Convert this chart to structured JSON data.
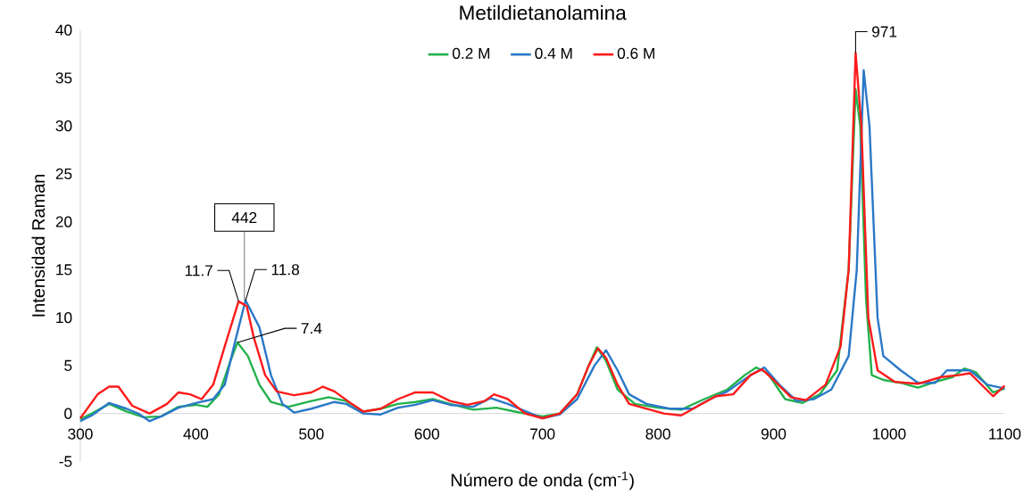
{
  "chart_data": {
    "type": "line",
    "title": "Metildietanolamina",
    "xlabel": "Número de onda (cm$^{-1}$)",
    "ylabel": "Intensidad Raman",
    "xlim": [
      300,
      1100
    ],
    "xticks": [
      300,
      400,
      500,
      600,
      700,
      800,
      900,
      1000,
      1100
    ],
    "ylim": [
      -5,
      40
    ],
    "yticks": [
      -5,
      0,
      5,
      10,
      15,
      20,
      25,
      30,
      35,
      40
    ],
    "grid": false,
    "legend": "top",
    "marker": "none",
    "line_style": "solid",
    "series": [
      {
        "name": "0.2 M",
        "color": "#22b24c",
        "x": [
          300,
          310,
          325,
          340,
          355,
          370,
          385,
          400,
          410,
          420,
          430,
          436,
          445,
          455,
          465,
          480,
          500,
          515,
          530,
          545,
          560,
          575,
          590,
          605,
          620,
          640,
          660,
          680,
          700,
          715,
          730,
          740,
          747,
          755,
          765,
          780,
          800,
          820,
          840,
          860,
          875,
          885,
          895,
          910,
          925,
          940,
          955,
          965,
          971,
          975,
          980,
          985,
          995,
          1010,
          1025,
          1040,
          1055,
          1065,
          1075,
          1090,
          1100
        ],
        "values": [
          -0.6,
          0,
          1.0,
          0.2,
          -0.4,
          -0.3,
          0.7,
          0.9,
          0.7,
          2,
          5.5,
          7.4,
          6,
          3,
          1.2,
          0.7,
          1.3,
          1.7,
          1.3,
          0.2,
          0.5,
          1.0,
          1.2,
          1.5,
          1.0,
          0.4,
          0.6,
          0.1,
          -0.3,
          0,
          2,
          5,
          6.9,
          5.5,
          2.5,
          1.0,
          0.6,
          0.4,
          1.5,
          2.5,
          4,
          4.8,
          4.2,
          1.5,
          1.1,
          2,
          4.5,
          15,
          33.8,
          30,
          12,
          4,
          3.5,
          3.2,
          2.7,
          3.3,
          3.8,
          4.7,
          4.3,
          2.2,
          2.6
        ]
      },
      {
        "name": "0.4 M",
        "color": "#2a78c8",
        "x": [
          300,
          310,
          325,
          340,
          350,
          360,
          370,
          385,
          400,
          415,
          425,
          435,
          443,
          455,
          465,
          475,
          485,
          500,
          520,
          530,
          545,
          560,
          575,
          590,
          605,
          620,
          640,
          655,
          670,
          690,
          700,
          715,
          730,
          745,
          755,
          765,
          775,
          790,
          810,
          830,
          845,
          860,
          880,
          892,
          905,
          920,
          935,
          950,
          965,
          972,
          978,
          983,
          990,
          995,
          1010,
          1025,
          1040,
          1050,
          1060,
          1070,
          1085,
          1100
        ],
        "values": [
          -0.8,
          -0.2,
          1.1,
          0.5,
          0,
          -0.8,
          -0.3,
          0.6,
          1.1,
          1.5,
          3,
          8,
          11.8,
          9,
          4,
          1,
          0.1,
          0.5,
          1.2,
          1.0,
          0,
          -0.1,
          0.6,
          0.9,
          1.4,
          0.9,
          0.7,
          1.6,
          1.0,
          0,
          -0.5,
          -0.1,
          1.5,
          5,
          6.6,
          4.5,
          2,
          1,
          0.5,
          0.5,
          1.5,
          2.3,
          4,
          4.8,
          3,
          1.3,
          1.5,
          2.5,
          6,
          15,
          35.8,
          30,
          10,
          6,
          4.5,
          3.2,
          3.2,
          4.5,
          4.5,
          4.5,
          3,
          2.6
        ]
      },
      {
        "name": "0.6 M",
        "color": "#ff1a1a",
        "x": [
          300,
          315,
          325,
          333,
          345,
          360,
          375,
          385,
          395,
          405,
          415,
          425,
          437,
          444,
          450,
          460,
          470,
          485,
          500,
          510,
          520,
          535,
          545,
          560,
          575,
          590,
          605,
          620,
          635,
          650,
          658,
          670,
          685,
          700,
          715,
          730,
          740,
          748,
          755,
          765,
          775,
          790,
          805,
          820,
          835,
          850,
          865,
          880,
          890,
          900,
          915,
          928,
          945,
          958,
          965,
          971,
          976,
          982,
          990,
          1005,
          1025,
          1045,
          1060,
          1070,
          1080,
          1090,
          1100
        ],
        "values": [
          -0.5,
          2,
          2.8,
          2.8,
          0.8,
          0.0,
          1.0,
          2.2,
          2.0,
          1.5,
          3,
          7,
          11.7,
          11.2,
          8,
          4,
          2.3,
          1.9,
          2.2,
          2.8,
          2.3,
          1.0,
          0.2,
          0.5,
          1.5,
          2.2,
          2.2,
          1.3,
          0.9,
          1.3,
          2.0,
          1.5,
          0,
          -0.5,
          0,
          2,
          5,
          6.8,
          5.8,
          3,
          1,
          0.5,
          0,
          -0.2,
          0.8,
          1.8,
          2,
          4,
          4.6,
          3.5,
          1.7,
          1.4,
          3,
          7,
          15,
          37.6,
          30,
          10,
          4.5,
          3.3,
          3.1,
          3.8,
          4.0,
          4.2,
          3,
          1.8,
          2.9
        ]
      }
    ],
    "annotations": [
      {
        "text": "442",
        "x": 442,
        "y": 11.8
      },
      {
        "text": "11.7",
        "x": 437,
        "y": 11.7
      },
      {
        "text": "11.8",
        "x": 443,
        "y": 11.8
      },
      {
        "text": "7.4",
        "x": 436,
        "y": 7.4
      },
      {
        "text": "971",
        "x": 971,
        "y": 37.6
      }
    ]
  }
}
